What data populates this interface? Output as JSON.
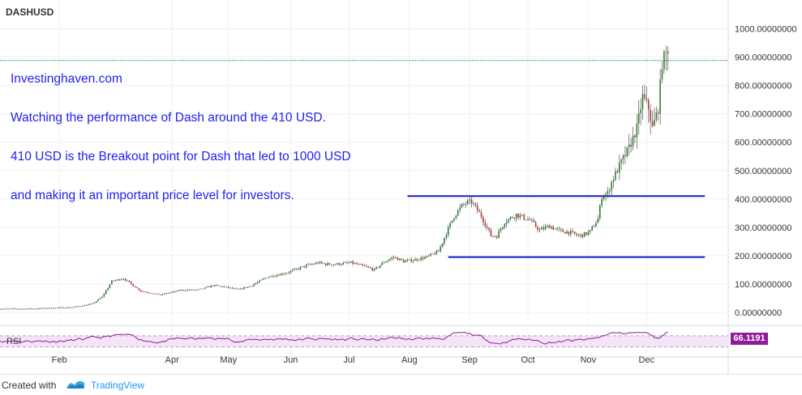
{
  "chart_data": {
    "type": "candlestick",
    "symbol": "DASHUSD",
    "annotation": {
      "lines": [
        "Investinghaven.com",
        "Watching the performance of Dash around the 410 USD.",
        "410 USD is the Breakout point for Dash that led to 1000 USD",
        "and making it an important price level for investors."
      ],
      "color": "#1f1ff0"
    },
    "y_axis": {
      "ticks": [
        "1000.00000000",
        "900.00000000",
        "800.00000000",
        "700.00000000",
        "600.00000000",
        "500.00000000",
        "400.00000000",
        "300.00000000",
        "200.00000000",
        "100.00000000",
        "0.00000000"
      ],
      "tick_values": [
        1000,
        900,
        800,
        700,
        600,
        500,
        400,
        300,
        200,
        100,
        0
      ],
      "ylim": [
        -40,
        1090
      ]
    },
    "x_axis": {
      "labels": [
        "Feb",
        "Apr",
        "May",
        "Jun",
        "Jul",
        "Aug",
        "Sep",
        "Oct",
        "Nov",
        "Dec"
      ],
      "label_days": [
        33,
        91,
        120,
        152,
        182,
        213,
        244,
        274,
        305,
        335
      ]
    },
    "horizontal_lines": [
      {
        "value": 410,
        "start_day": 212,
        "end_day": 365,
        "color": "#1a1ac8"
      },
      {
        "value": 195,
        "start_day": 233,
        "end_day": 365,
        "color": "#1a1ac8"
      }
    ],
    "price_line": {
      "value": 888,
      "color": "#0a6a6a",
      "style": "dotted"
    },
    "price_anchors": [
      [
        1,
        12
      ],
      [
        20,
        13
      ],
      [
        40,
        18
      ],
      [
        50,
        30
      ],
      [
        55,
        55
      ],
      [
        60,
        110
      ],
      [
        66,
        120
      ],
      [
        75,
        75
      ],
      [
        85,
        62
      ],
      [
        95,
        78
      ],
      [
        105,
        80
      ],
      [
        112,
        95
      ],
      [
        118,
        90
      ],
      [
        125,
        80
      ],
      [
        132,
        95
      ],
      [
        140,
        125
      ],
      [
        150,
        140
      ],
      [
        160,
        165
      ],
      [
        166,
        175
      ],
      [
        170,
        170
      ],
      [
        175,
        170
      ],
      [
        183,
        175
      ],
      [
        190,
        162
      ],
      [
        195,
        150
      ],
      [
        200,
        178
      ],
      [
        205,
        195
      ],
      [
        210,
        180
      ],
      [
        215,
        185
      ],
      [
        222,
        195
      ],
      [
        228,
        215
      ],
      [
        232,
        280
      ],
      [
        236,
        340
      ],
      [
        240,
        375
      ],
      [
        242,
        385
      ],
      [
        245,
        390
      ],
      [
        250,
        340
      ],
      [
        255,
        270
      ],
      [
        258,
        270
      ],
      [
        262,
        320
      ],
      [
        268,
        345
      ],
      [
        275,
        325
      ],
      [
        280,
        290
      ],
      [
        285,
        305
      ],
      [
        290,
        288
      ],
      [
        295,
        283
      ],
      [
        300,
        270
      ],
      [
        303,
        275
      ],
      [
        306,
        285
      ],
      [
        310,
        330
      ],
      [
        312,
        410
      ],
      [
        315,
        420
      ],
      [
        317,
        460
      ],
      [
        322,
        530
      ],
      [
        326,
        580
      ],
      [
        330,
        650
      ],
      [
        333,
        760
      ],
      [
        336,
        720
      ],
      [
        338,
        650
      ],
      [
        341,
        720
      ],
      [
        343,
        880
      ],
      [
        346,
        930
      ]
    ],
    "rsi": {
      "label": "RSI",
      "value_text": "66.1191",
      "upper": 70,
      "lower": 30,
      "color": "#8e1c9a",
      "fill": "#f3e4f7"
    }
  },
  "footer": {
    "created_with": "Created with",
    "brand": "TradingView"
  }
}
